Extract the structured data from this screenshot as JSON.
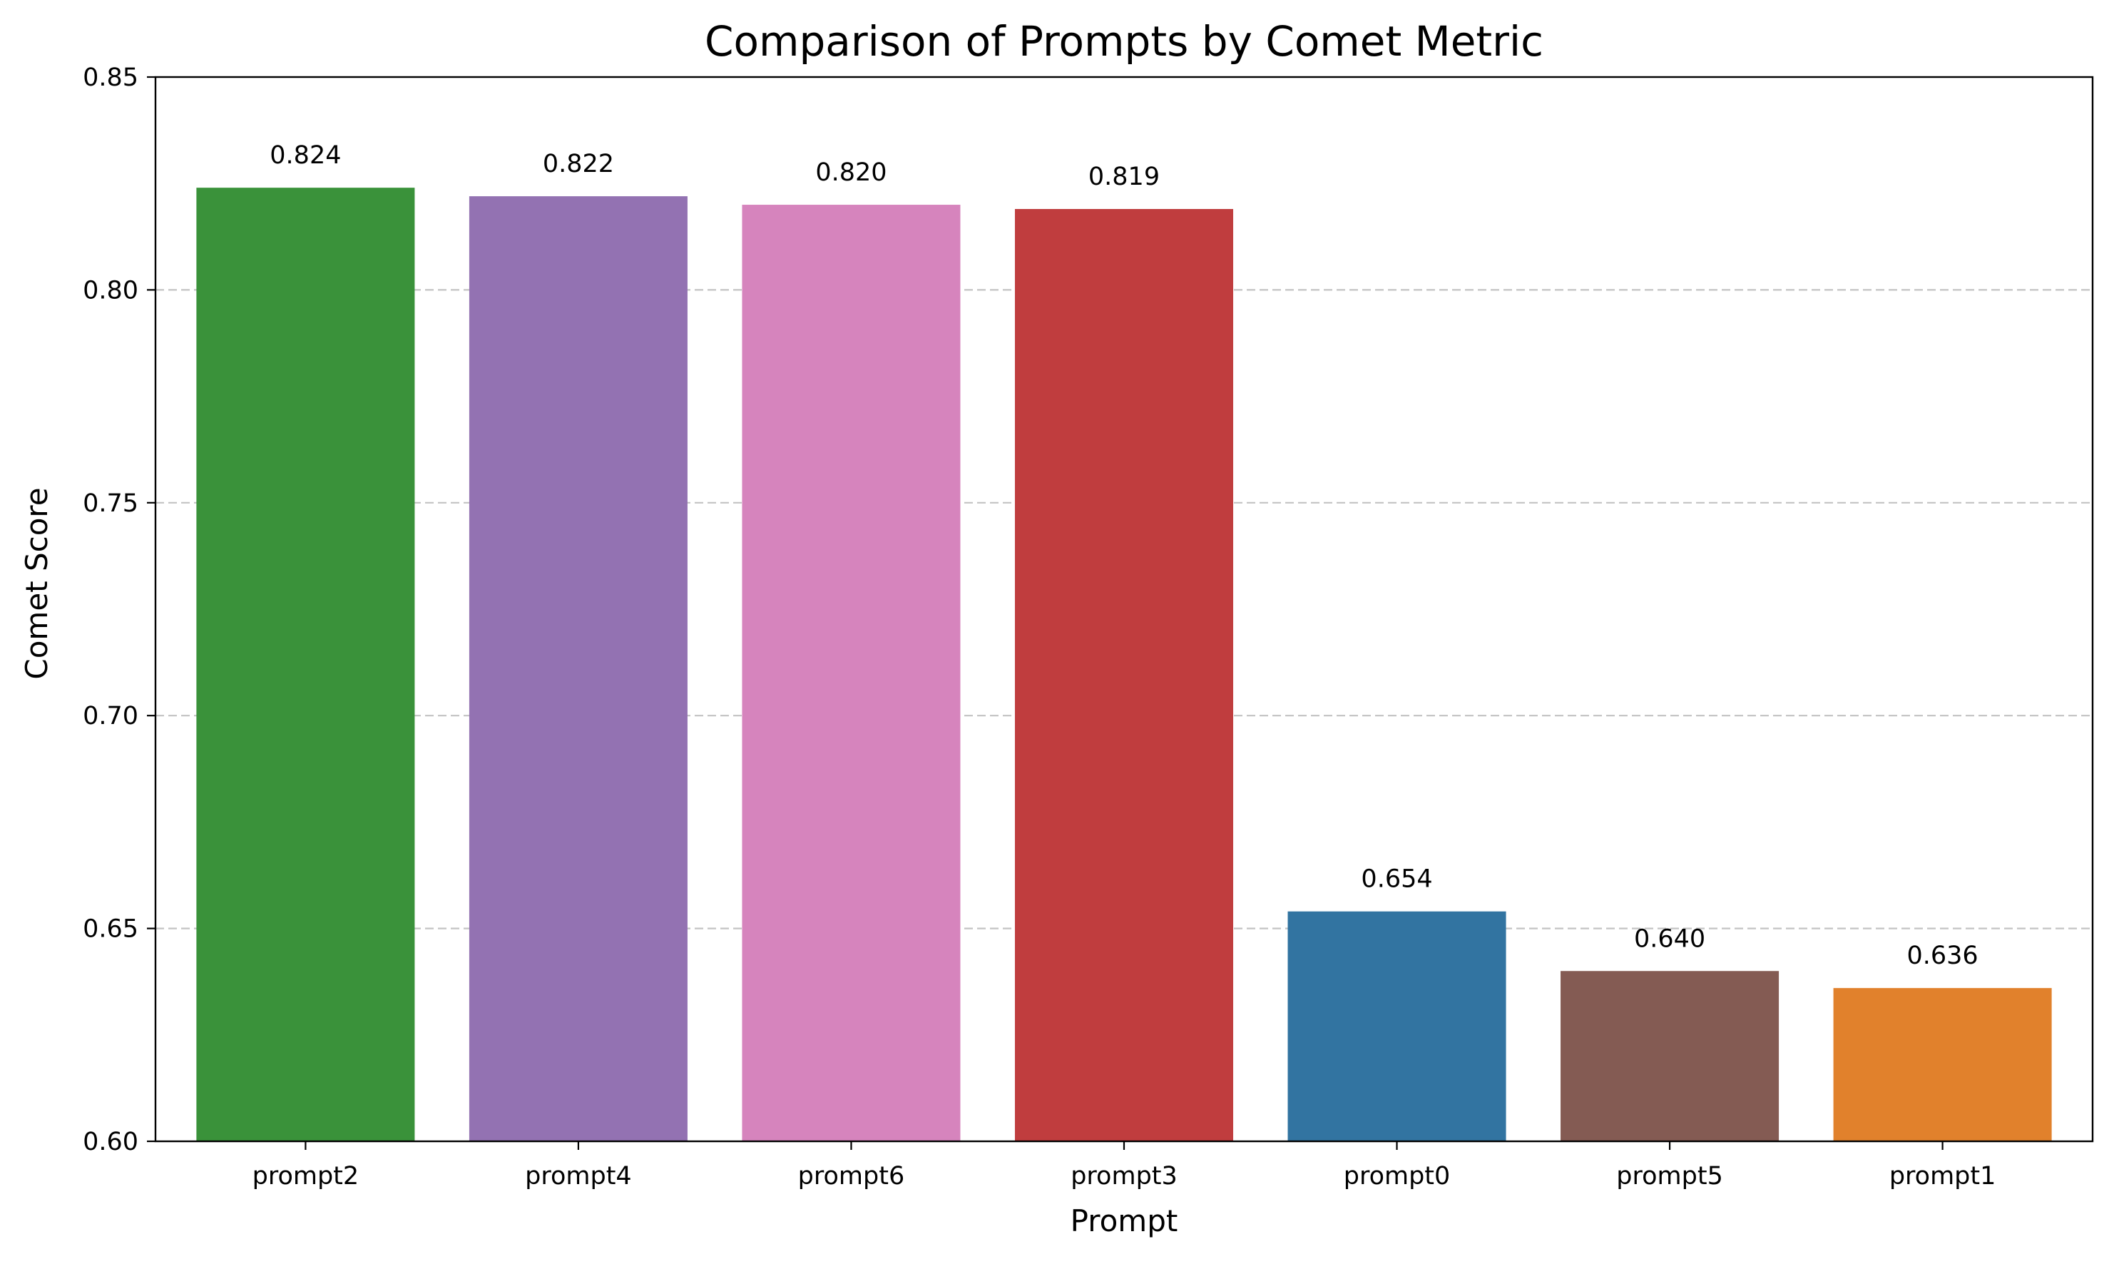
{
  "chart_data": {
    "type": "bar",
    "title": "Comparison of Prompts by Comet Metric",
    "xlabel": "Prompt",
    "ylabel": "Comet Score",
    "ylim": [
      0.6,
      0.85
    ],
    "yticks": [
      "0.60",
      "0.65",
      "0.70",
      "0.75",
      "0.80",
      "0.85"
    ],
    "grid": "y-dashed",
    "categories": [
      "prompt2",
      "prompt4",
      "prompt6",
      "prompt3",
      "prompt0",
      "prompt5",
      "prompt1"
    ],
    "values": [
      0.824,
      0.822,
      0.82,
      0.819,
      0.654,
      0.64,
      0.636
    ],
    "value_labels": [
      "0.824",
      "0.822",
      "0.820",
      "0.819",
      "0.654",
      "0.640",
      "0.636"
    ],
    "colors": [
      "#3a923a",
      "#9372b2",
      "#d684bd",
      "#c03d3e",
      "#3274a1",
      "#845b53",
      "#e1812c"
    ]
  }
}
